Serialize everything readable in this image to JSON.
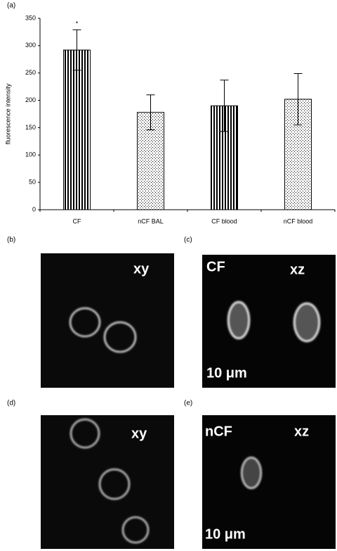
{
  "chart_data": {
    "type": "bar",
    "panel_label": "(a)",
    "y_label": "fluorescence intensity",
    "categories": [
      "CF",
      "nCF BAL",
      "CF blood",
      "nCF blood"
    ],
    "values": [
      292,
      178,
      190,
      202
    ],
    "errors": [
      37,
      32,
      47,
      47
    ],
    "patterns": [
      "stripes",
      "dots",
      "stripes",
      "dots"
    ],
    "color": "#000000",
    "annotations": [
      {
        "text": "*",
        "index": 0
      }
    ],
    "ylim": [
      0,
      350
    ],
    "yticks": [
      0,
      50,
      100,
      150,
      200,
      250,
      300,
      350
    ],
    "grid": false
  },
  "panels": [
    {
      "label": "(b)",
      "texts": [
        "xy"
      ]
    },
    {
      "label": "(c)",
      "texts": [
        "CF",
        "xz",
        "10 μm"
      ]
    },
    {
      "label": "(d)",
      "texts": [
        "xy"
      ]
    },
    {
      "label": "(e)",
      "texts": [
        "nCF",
        "xz",
        "10 μm"
      ]
    }
  ]
}
